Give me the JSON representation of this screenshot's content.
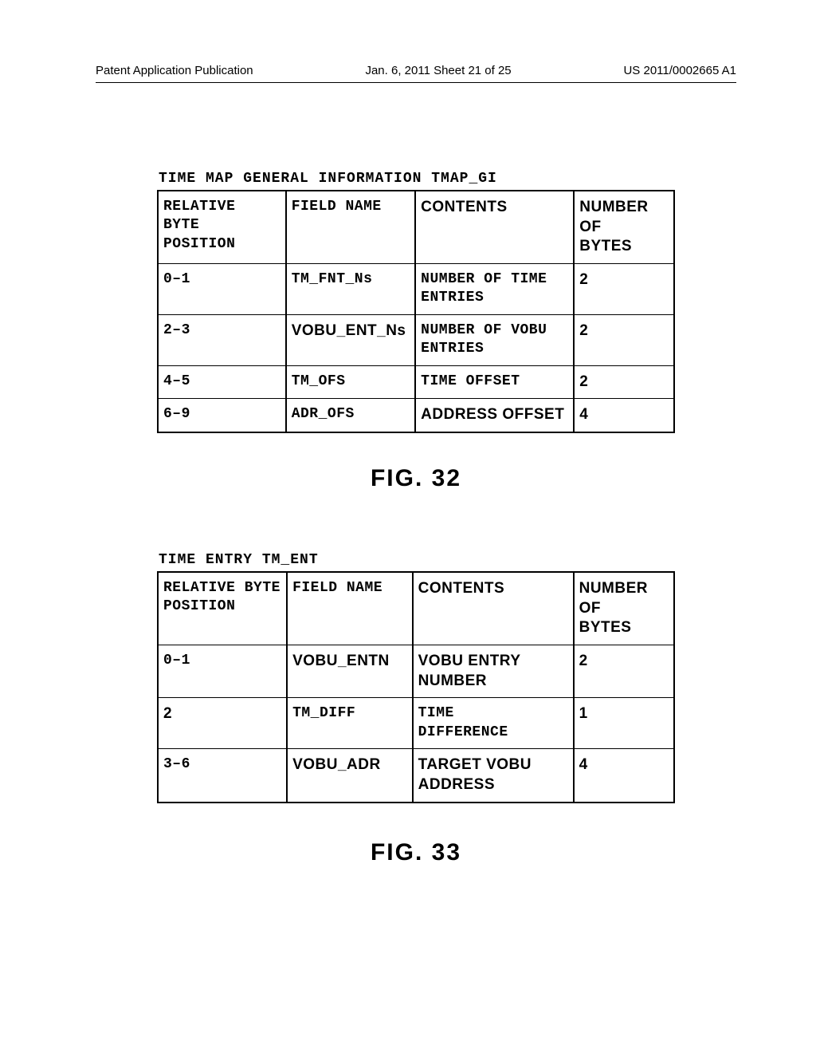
{
  "header": {
    "left": "Patent Application Publication",
    "mid": "Jan. 6, 2011  Sheet 21 of 25",
    "right": "US 2011/0002665 A1"
  },
  "table1": {
    "title": "TIME MAP GENERAL INFORMATION TMAP_GI",
    "columns": {
      "c0a": "RELATIVE BYTE",
      "c0b": "POSITION",
      "c1": "FIELD NAME",
      "c2": "CONTENTS",
      "c3a": "NUMBER OF",
      "c3b": "BYTES"
    },
    "rows": [
      {
        "pos": "0–1",
        "field": "TM_FNT_Ns",
        "cont1": "NUMBER OF TIME",
        "cont2": "ENTRIES",
        "bytes": "2"
      },
      {
        "pos": "2–3",
        "field": "VOBU_ENT_Ns",
        "cont1": "NUMBER OF VOBU",
        "cont2": "ENTRIES",
        "bytes": "2"
      },
      {
        "pos": "4–5",
        "field": "TM_OFS",
        "cont1": "TIME OFFSET",
        "cont2": "",
        "bytes": "2"
      },
      {
        "pos": "6–9",
        "field": "ADR_OFS",
        "cont1": "ADDRESS OFFSET",
        "cont2": "",
        "bytes": "4"
      }
    ],
    "fig": "FIG. 32"
  },
  "table2": {
    "title": "TIME ENTRY TM_ENT",
    "columns": {
      "c0a": "RELATIVE BYTE",
      "c0b": "POSITION",
      "c1": "FIELD NAME",
      "c2": "CONTENTS",
      "c3a": "NUMBER OF",
      "c3b": "BYTES"
    },
    "rows": [
      {
        "pos": "0–1",
        "field": "VOBU_ENTN",
        "cont1": "VOBU ENTRY",
        "cont2": "NUMBER",
        "bytes": "2"
      },
      {
        "pos": "2",
        "field": "TM_DIFF",
        "cont1": "TIME",
        "cont2": "DIFFERENCE",
        "bytes": "1"
      },
      {
        "pos": "3–6",
        "field": "VOBU_ADR",
        "cont1": "TARGET VOBU",
        "cont2": "ADDRESS",
        "bytes": "4"
      }
    ],
    "fig": "FIG. 33"
  }
}
